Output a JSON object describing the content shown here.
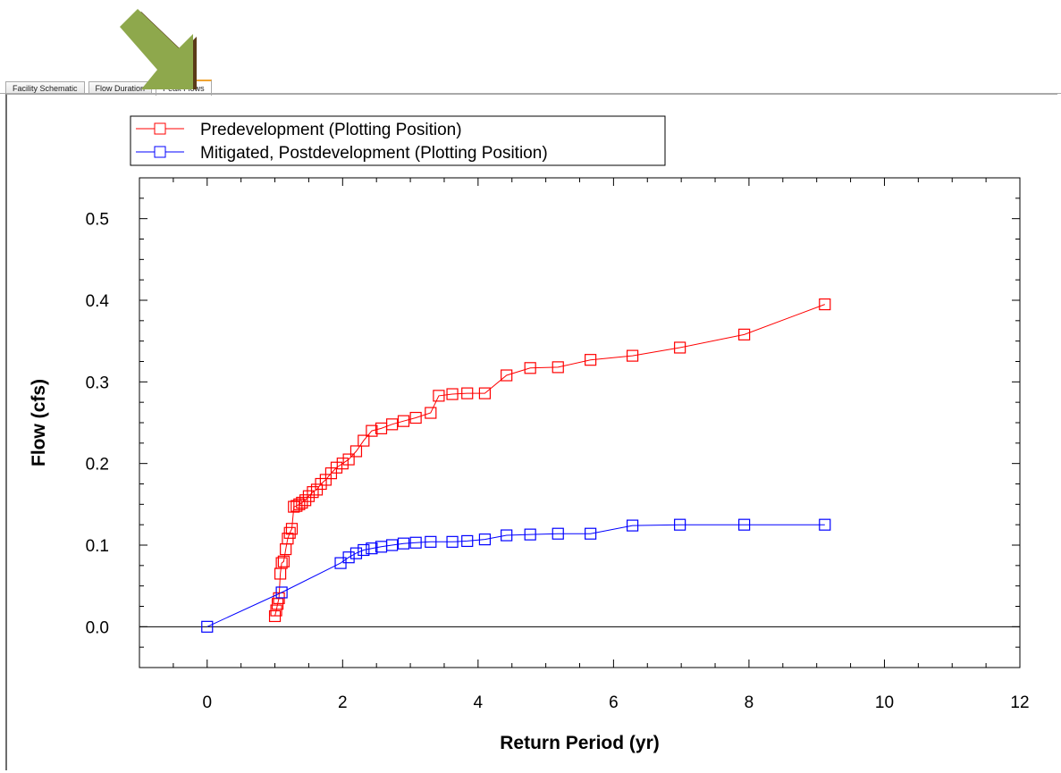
{
  "tabs": [
    {
      "label": "Facility Schematic",
      "active": false
    },
    {
      "label": "Flow Duration",
      "active": false
    },
    {
      "label": "Peak Flows",
      "active": true
    }
  ],
  "chart_data": {
    "type": "line",
    "title": "",
    "xlabel": "Return Period (yr)",
    "ylabel": "Flow (cfs)",
    "xlim": [
      -1,
      12
    ],
    "ylim": [
      -0.05,
      0.55
    ],
    "xticks": [
      0,
      2,
      4,
      6,
      8,
      10,
      12
    ],
    "yticks": [
      0.0,
      0.1,
      0.2,
      0.3,
      0.4,
      0.5
    ],
    "ytick_labels": [
      "0.0",
      "0.1",
      "0.2",
      "0.3",
      "0.4",
      "0.5"
    ],
    "grid": false,
    "legend_position": "top-left",
    "marker": "open-square",
    "series": [
      {
        "name": "Predevelopment (Plotting Position)",
        "color": "#ff0000",
        "x": [
          1.0,
          1.02,
          1.04,
          1.06,
          1.08,
          1.1,
          1.13,
          1.16,
          1.19,
          1.22,
          1.25,
          1.28,
          1.32,
          1.36,
          1.4,
          1.45,
          1.5,
          1.56,
          1.62,
          1.68,
          1.75,
          1.83,
          1.91,
          2.0,
          2.09,
          2.2,
          2.31,
          2.43,
          2.57,
          2.73,
          2.9,
          3.08,
          3.3,
          3.42,
          3.62,
          3.84,
          4.1,
          4.42,
          4.77,
          5.18,
          5.66,
          6.28,
          6.98,
          7.93,
          9.12
        ],
        "y": [
          0.013,
          0.02,
          0.028,
          0.035,
          0.065,
          0.078,
          0.08,
          0.095,
          0.108,
          0.115,
          0.12,
          0.147,
          0.148,
          0.15,
          0.152,
          0.155,
          0.16,
          0.165,
          0.168,
          0.175,
          0.18,
          0.188,
          0.195,
          0.2,
          0.205,
          0.215,
          0.228,
          0.24,
          0.243,
          0.248,
          0.252,
          0.256,
          0.262,
          0.283,
          0.285,
          0.286,
          0.286,
          0.308,
          0.317,
          0.318,
          0.327,
          0.332,
          0.342,
          0.358,
          0.395
        ]
      },
      {
        "name": "Mitigated, Postdevelopment (Plotting Position)",
        "color": "#0000ff",
        "x": [
          0.0,
          1.1,
          1.97,
          2.09,
          2.2,
          2.31,
          2.43,
          2.57,
          2.73,
          2.9,
          3.08,
          3.3,
          3.62,
          3.84,
          4.1,
          4.42,
          4.77,
          5.18,
          5.66,
          6.28,
          6.98,
          7.93,
          9.12
        ],
        "y": [
          0.0,
          0.042,
          0.078,
          0.085,
          0.09,
          0.094,
          0.096,
          0.098,
          0.1,
          0.102,
          0.103,
          0.104,
          0.104,
          0.105,
          0.107,
          0.112,
          0.113,
          0.114,
          0.114,
          0.124,
          0.125,
          0.125,
          0.125
        ]
      }
    ]
  }
}
